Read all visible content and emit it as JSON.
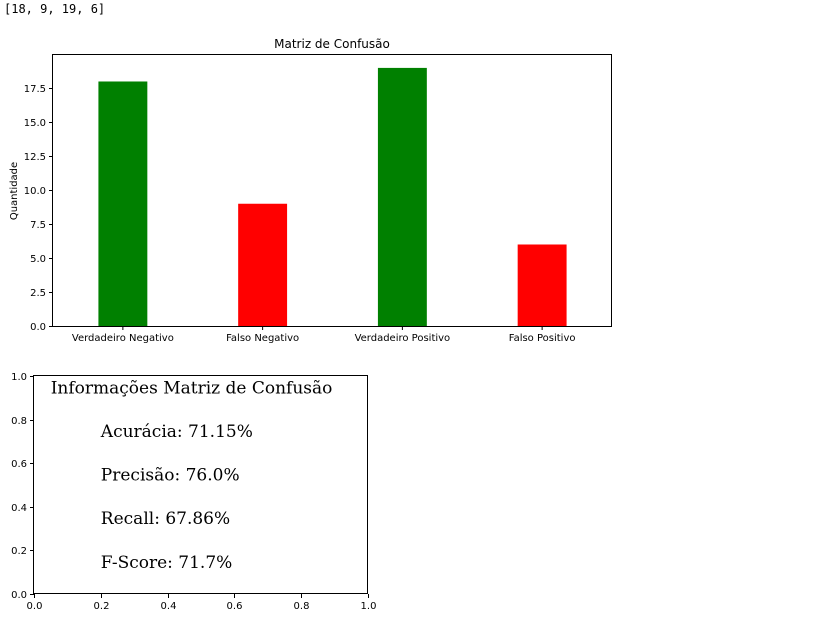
{
  "console_output": "[18, 9, 19, 6]",
  "chart_data": [
    {
      "type": "bar",
      "title": "Matriz de Confusão",
      "xlabel": "",
      "ylabel": "Quantidade",
      "categories": [
        "Verdadeiro Negativo",
        "Falso Negativo",
        "Verdadeiro Positivo",
        "Falso Positivo"
      ],
      "values": [
        18,
        9,
        19,
        6
      ],
      "colors": [
        "#008000",
        "#ff0000",
        "#008000",
        "#ff0000"
      ],
      "ylim": [
        0,
        19.95
      ],
      "yticks": [
        0.0,
        2.5,
        5.0,
        7.5,
        10.0,
        12.5,
        15.0,
        17.5
      ],
      "ytick_labels": [
        "0.0",
        "2.5",
        "5.0",
        "7.5",
        "10.0",
        "12.5",
        "15.0",
        "17.5"
      ],
      "grid": false
    },
    {
      "type": "text",
      "xlim": [
        0,
        1
      ],
      "ylim": [
        0,
        1
      ],
      "xticks": [
        0.0,
        0.2,
        0.4,
        0.6,
        0.8,
        1.0
      ],
      "xtick_labels": [
        "0.0",
        "0.2",
        "0.4",
        "0.6",
        "0.8",
        "1.0"
      ],
      "yticks": [
        0.0,
        0.2,
        0.4,
        0.6,
        0.8,
        1.0
      ],
      "ytick_labels": [
        "0.0",
        "0.2",
        "0.4",
        "0.6",
        "0.8",
        "1.0"
      ],
      "grid": false,
      "annotations": [
        {
          "text": "Informações Matriz de Confusão",
          "x": 0.05,
          "y": 0.92
        },
        {
          "text": "Acurácia: 71.15%",
          "x": 0.2,
          "y": 0.72
        },
        {
          "text": "Precisão: 76.0%",
          "x": 0.2,
          "y": 0.52
        },
        {
          "text": "Recall: 67.86%",
          "x": 0.2,
          "y": 0.32
        },
        {
          "text": "F-Score: 71.7%",
          "x": 0.2,
          "y": 0.12
        }
      ]
    }
  ]
}
